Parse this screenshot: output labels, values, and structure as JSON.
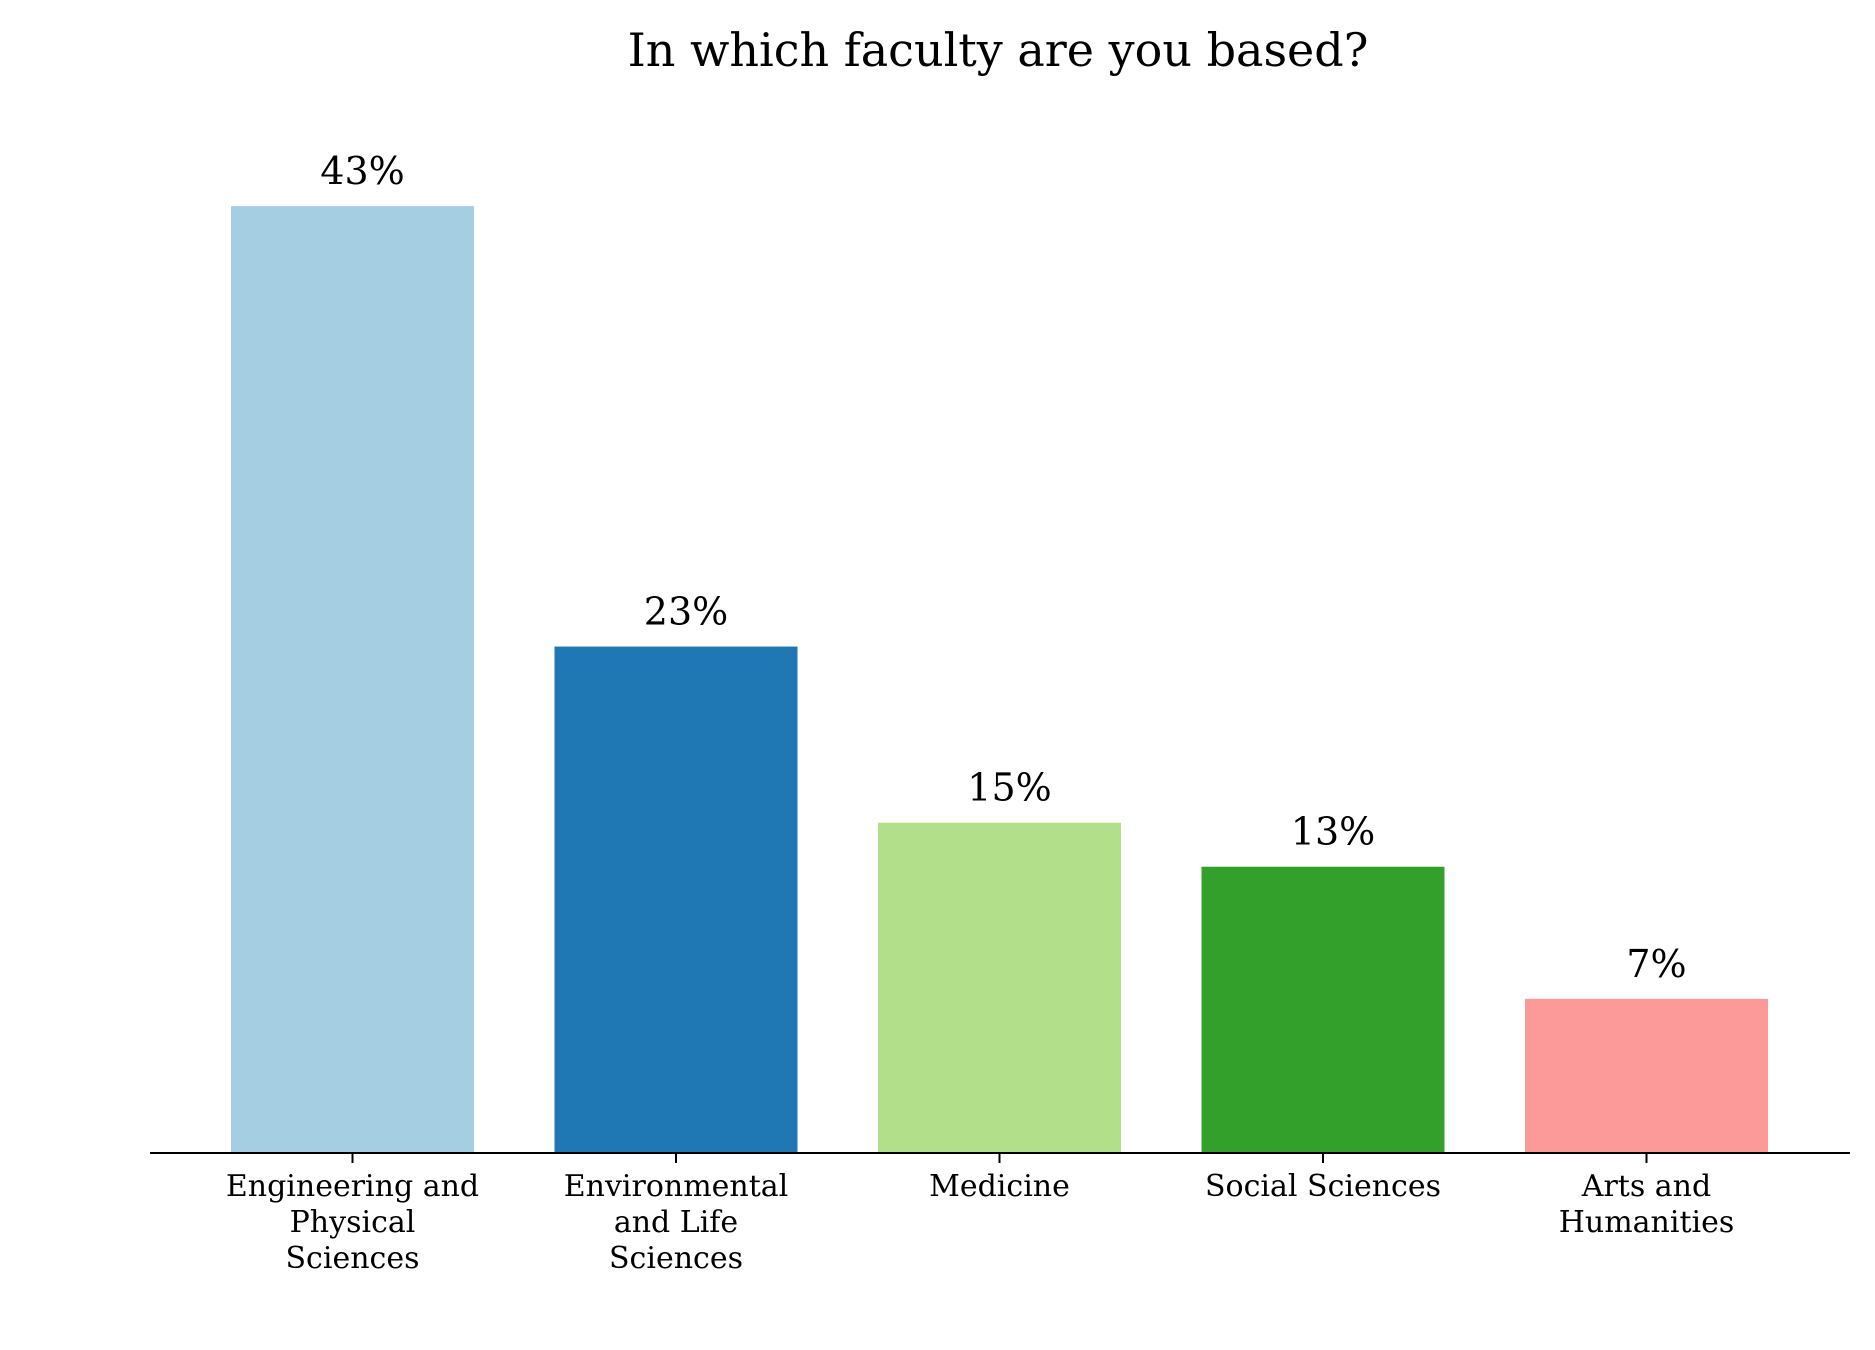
{
  "chart_data": {
    "type": "bar",
    "title": "In which faculty are you based?",
    "xlabel": "",
    "ylabel": "",
    "ylim": [
      0,
      50
    ],
    "grid": false,
    "legend": "none",
    "categories": [
      [
        "Engineering and",
        "Physical",
        "Sciences"
      ],
      [
        "Environmental",
        "and Life",
        "Sciences"
      ],
      [
        "Medicine"
      ],
      [
        "Social Sciences"
      ],
      [
        "Arts and",
        "Humanities"
      ]
    ],
    "values": [
      43,
      23,
      15,
      13,
      7
    ],
    "data_labels": [
      "43%",
      "23%",
      "15%",
      "13%",
      "7%"
    ],
    "colors": [
      "#a6cee3",
      "#1f78b4",
      "#b2df8a",
      "#33a02c",
      "#fb9a99"
    ]
  }
}
